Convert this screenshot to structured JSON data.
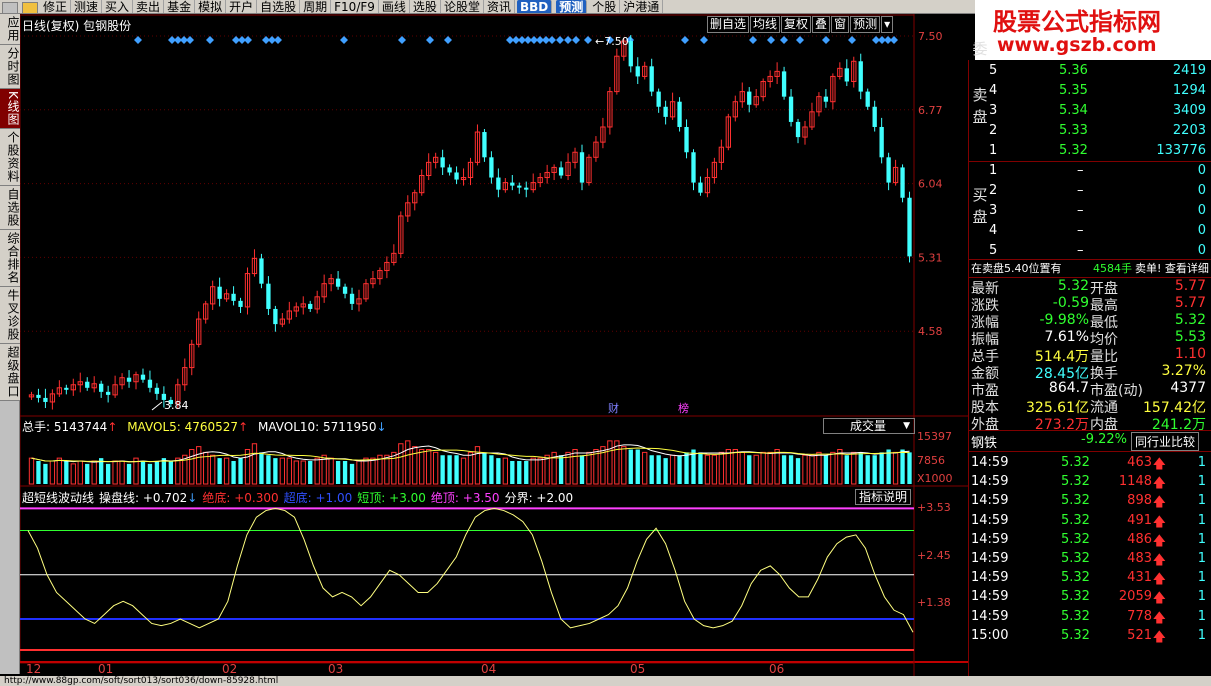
{
  "menubar": {
    "items": [
      "修正",
      "测速",
      "买入",
      "卖出",
      "基金",
      "模拟",
      "开户",
      "自选股",
      "周期",
      "F10/F9",
      "画线",
      "选股",
      "论股堂",
      "资讯",
      "BBD",
      "预测",
      "个股",
      "沪港通"
    ]
  },
  "brand": {
    "title": "股票公式指标网",
    "url": "www.gszb.com"
  },
  "sidebar": {
    "tabs": [
      "应用",
      "分时图",
      "K线图",
      "个股资料",
      "自选股",
      "综合排名",
      "牛叉诊股",
      "超级盘口"
    ]
  },
  "kline": {
    "title": "日线(复权) 包钢股份",
    "buttons": [
      "删自选",
      "均线",
      "复权",
      "叠",
      "窗",
      "预测"
    ],
    "max_label": "7.50",
    "min_label": "3.84",
    "price_ticks": [
      "7.50",
      "6.77",
      "6.04",
      "5.31",
      "4.58"
    ],
    "markers": {
      "cai": "财",
      "bang": "榜"
    }
  },
  "volume": {
    "total_label": "总手: 5143744",
    "mavol5_label": "MAVOL5: 4760527",
    "mavol10_label": "MAVOL10: 5711950",
    "selector": "成交量",
    "ticks": [
      "15397",
      "7856",
      "X1000"
    ]
  },
  "osc": {
    "name": "超短线波动线",
    "items": [
      {
        "label": "操盘线: +0.702",
        "color": "#ffffff"
      },
      {
        "label": "绝底: +0.300",
        "color": "#ff3030"
      },
      {
        "label": "超底: +1.00",
        "color": "#3050ff"
      },
      {
        "label": "短顶: +3.00",
        "color": "#30ff30"
      },
      {
        "label": "绝顶: +3.50",
        "color": "#ff40ff"
      },
      {
        "label": "分界: +2.00",
        "color": "#ffffff"
      }
    ],
    "button": "指标说明",
    "ticks": [
      "+3.53",
      "+2.45",
      "+1.38"
    ]
  },
  "xaxis": {
    "labels": [
      "12",
      "01",
      "02",
      "03",
      "04",
      "05",
      "06"
    ]
  },
  "statusbar": {
    "text": "http://www.88gp.com/soft/sort013/sort036/down-85928.html"
  },
  "quote": {
    "wei_label": "委",
    "sell_label": "卖盘",
    "buy_label": "买盘",
    "sells": [
      {
        "n": "5",
        "p": "5.36",
        "v": "2419"
      },
      {
        "n": "4",
        "p": "5.35",
        "v": "1294"
      },
      {
        "n": "3",
        "p": "5.34",
        "v": "3409"
      },
      {
        "n": "2",
        "p": "5.33",
        "v": "2203"
      },
      {
        "n": "1",
        "p": "5.32",
        "v": "133776"
      }
    ],
    "buys": [
      {
        "n": "1",
        "p": "–",
        "v": "0"
      },
      {
        "n": "2",
        "p": "–",
        "v": "0"
      },
      {
        "n": "3",
        "p": "–",
        "v": "0"
      },
      {
        "n": "4",
        "p": "–",
        "v": "0"
      },
      {
        "n": "5",
        "p": "–",
        "v": "0"
      }
    ],
    "notice": {
      "text": "在卖盘5.40位置有",
      "qty": "4584手",
      "action": "卖单! 查看详细"
    },
    "stats": [
      {
        "l1": "最新",
        "v1": "5.32",
        "c1": "#30ff30",
        "l2": "开盘",
        "v2": "5.77",
        "c2": "#ff3030"
      },
      {
        "l1": "涨跌",
        "v1": "-0.59",
        "c1": "#30ff30",
        "l2": "最高",
        "v2": "5.77",
        "c2": "#ff3030"
      },
      {
        "l1": "涨幅",
        "v1": "-9.98%",
        "c1": "#30ff30",
        "l2": "最低",
        "v2": "5.32",
        "c2": "#30ff30"
      },
      {
        "l1": "振幅",
        "v1": "7.61%",
        "c1": "#ffffff",
        "l2": "均价",
        "v2": "5.53",
        "c2": "#30ff30"
      },
      {
        "l1": "总手",
        "v1": "514.4万",
        "c1": "#ffff40",
        "l2": "量比",
        "v2": "1.10",
        "c2": "#ff3030"
      },
      {
        "l1": "金额",
        "v1": "28.45亿",
        "c1": "#40ffff",
        "l2": "换手",
        "v2": "3.27%",
        "c2": "#ffff40"
      },
      {
        "l1": "市盈",
        "v1": "864.7",
        "c1": "#ffffff",
        "l2": "市盈(动)",
        "v2": "4377",
        "c2": "#ffffff"
      },
      {
        "l1": "股本",
        "v1": "325.61亿",
        "c1": "#ffff40",
        "l2": "流通",
        "v2": "157.42亿",
        "c2": "#ffff40"
      },
      {
        "l1": "外盘",
        "v1": "273.2万",
        "c1": "#ff3030",
        "l2": "内盘",
        "v2": "241.2万",
        "c2": "#30ff30"
      }
    ],
    "sector": {
      "name": "钢铁",
      "change": "-9.22%",
      "button": "同行业比较"
    },
    "ticks": [
      {
        "t": "14:59",
        "p": "5.32",
        "v": "463",
        "n": "1"
      },
      {
        "t": "14:59",
        "p": "5.32",
        "v": "1148",
        "n": "1"
      },
      {
        "t": "14:59",
        "p": "5.32",
        "v": "898",
        "n": "1"
      },
      {
        "t": "14:59",
        "p": "5.32",
        "v": "491",
        "n": "1"
      },
      {
        "t": "14:59",
        "p": "5.32",
        "v": "486",
        "n": "1"
      },
      {
        "t": "14:59",
        "p": "5.32",
        "v": "483",
        "n": "1"
      },
      {
        "t": "14:59",
        "p": "5.32",
        "v": "431",
        "n": "1"
      },
      {
        "t": "14:59",
        "p": "5.32",
        "v": "2059",
        "n": "1"
      },
      {
        "t": "14:59",
        "p": "5.32",
        "v": "778",
        "n": "1"
      },
      {
        "t": "15:00",
        "p": "5.32",
        "v": "521",
        "n": "1"
      }
    ]
  },
  "chart_data": [
    {
      "type": "candlestick",
      "title": "日线(复权) 包钢股份",
      "ylim": [
        3.84,
        7.5
      ],
      "closes": [
        3.95,
        3.92,
        3.88,
        3.96,
        4.02,
        4.0,
        4.05,
        4.08,
        4.02,
        4.06,
        3.98,
        3.95,
        4.05,
        4.12,
        4.08,
        4.15,
        4.1,
        4.02,
        3.96,
        3.9,
        3.86,
        4.05,
        4.22,
        4.45,
        4.7,
        4.85,
        5.02,
        4.9,
        4.95,
        4.88,
        4.82,
        5.15,
        5.3,
        5.05,
        4.8,
        4.65,
        4.7,
        4.78,
        4.82,
        4.85,
        4.8,
        4.92,
        5.05,
        5.1,
        5.02,
        4.95,
        4.85,
        4.9,
        5.05,
        5.1,
        5.18,
        5.26,
        5.35,
        5.72,
        5.85,
        5.95,
        6.12,
        6.25,
        6.3,
        6.2,
        6.15,
        6.08,
        6.1,
        6.25,
        6.55,
        6.3,
        6.1,
        5.98,
        6.05,
        6.02,
        6.0,
        5.98,
        6.05,
        6.1,
        6.15,
        6.2,
        6.12,
        6.25,
        6.35,
        6.05,
        6.3,
        6.45,
        6.6,
        6.95,
        7.3,
        7.45,
        7.2,
        7.1,
        7.2,
        6.95,
        6.8,
        6.7,
        6.85,
        6.6,
        6.35,
        6.05,
        5.95,
        6.1,
        6.25,
        6.4,
        6.7,
        6.85,
        6.95,
        6.82,
        6.9,
        7.05,
        7.1,
        7.15,
        6.9,
        6.65,
        6.5,
        6.6,
        6.75,
        6.9,
        6.85,
        7.1,
        7.18,
        7.05,
        7.25,
        6.95,
        6.8,
        6.6,
        6.3,
        6.05,
        6.2,
        5.9,
        5.32
      ],
      "volumes": [
        9,
        8,
        7,
        8,
        9,
        8,
        7,
        8,
        7,
        8,
        9,
        7,
        8,
        8,
        7,
        9,
        8,
        7,
        8,
        9,
        8,
        9,
        10,
        12,
        13,
        11,
        10,
        9,
        9,
        8,
        9,
        12,
        14,
        11,
        10,
        9,
        9,
        9,
        8,
        8,
        8,
        9,
        10,
        9,
        8,
        8,
        7,
        8,
        9,
        9,
        10,
        10,
        11,
        14,
        15,
        13,
        12,
        12,
        11,
        10,
        10,
        10,
        9,
        11,
        13,
        11,
        10,
        9,
        9,
        8,
        8,
        8,
        9,
        9,
        10,
        11,
        10,
        11,
        12,
        10,
        11,
        12,
        13,
        15,
        15,
        13,
        12,
        12,
        11,
        10,
        10,
        9,
        10,
        10,
        11,
        12,
        11,
        10,
        10,
        11,
        12,
        12,
        11,
        10,
        10,
        11,
        11,
        12,
        10,
        10,
        9,
        10,
        10,
        11,
        10,
        11,
        12,
        10,
        11,
        11,
        10,
        10,
        11,
        12,
        11,
        12,
        11
      ],
      "mavol5": 4760527,
      "mavol10": 5711950,
      "total": 5143744
    },
    {
      "type": "line",
      "title": "超短线波动线",
      "ylim": [
        0.3,
        3.53
      ],
      "levels": {
        "绝底": 0.3,
        "超底": 1.0,
        "分界": 2.0,
        "短顶": 3.0,
        "绝顶": 3.5
      },
      "series": [
        {
          "name": "操盘线",
          "values": [
            3.0,
            2.6,
            2.0,
            1.6,
            1.4,
            1.2,
            1.0,
            0.9,
            1.1,
            1.3,
            1.4,
            1.3,
            1.1,
            0.9,
            0.85,
            0.9,
            1.0,
            0.9,
            0.8,
            0.9,
            1.0,
            1.4,
            2.2,
            2.9,
            3.3,
            3.45,
            3.5,
            3.45,
            3.3,
            2.8,
            2.2,
            1.7,
            1.5,
            1.6,
            1.5,
            1.3,
            1.5,
            1.8,
            2.1,
            2.0,
            1.8,
            1.6,
            1.6,
            1.8,
            2.1,
            2.4,
            2.9,
            3.3,
            3.45,
            3.5,
            3.45,
            3.35,
            3.2,
            2.9,
            2.3,
            1.6,
            1.0,
            0.8,
            0.85,
            0.9,
            1.0,
            1.1,
            1.3,
            1.7,
            2.3,
            2.8,
            3.05,
            2.7,
            2.1,
            1.4,
            1.0,
            0.85,
            0.8,
            0.85,
            0.95,
            1.3,
            1.8,
            2.1,
            2.2,
            2.0,
            1.7,
            1.5,
            1.5,
            1.9,
            2.4,
            2.7,
            2.85,
            2.9,
            2.6,
            2.0,
            1.5,
            1.2,
            1.1,
            0.702
          ]
        }
      ]
    }
  ]
}
